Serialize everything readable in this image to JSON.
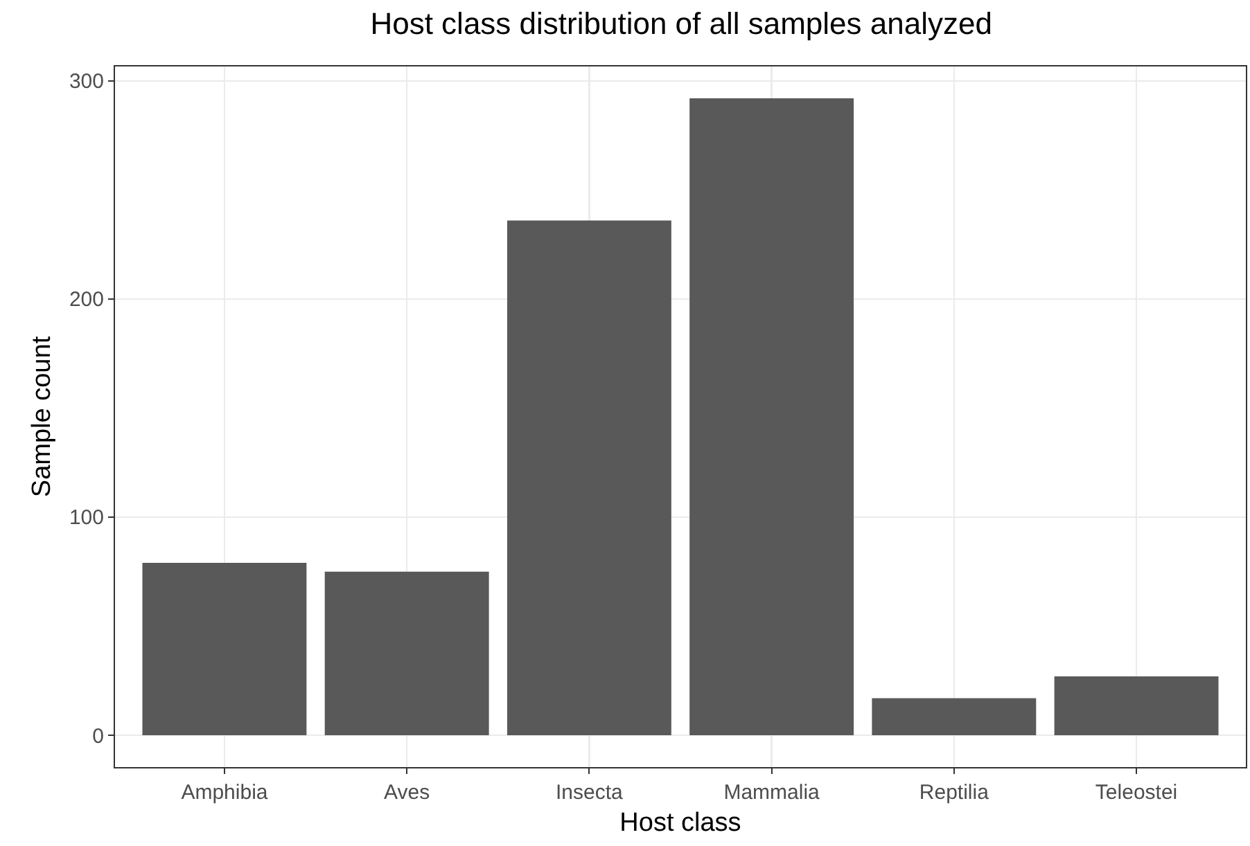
{
  "chart_data": {
    "type": "bar",
    "title": "Host class distribution of all samples analyzed",
    "xlabel": "Host class",
    "ylabel": "Sample count",
    "categories": [
      "Amphibia",
      "Aves",
      "Insecta",
      "Mammalia",
      "Reptilia",
      "Teleostei"
    ],
    "values": [
      79,
      75,
      236,
      292,
      17,
      27
    ],
    "color": "#595959",
    "ylim": [
      -14.6,
      306.6
    ],
    "yticks": [
      0,
      100,
      200,
      300
    ],
    "grid": true,
    "legend": false
  }
}
